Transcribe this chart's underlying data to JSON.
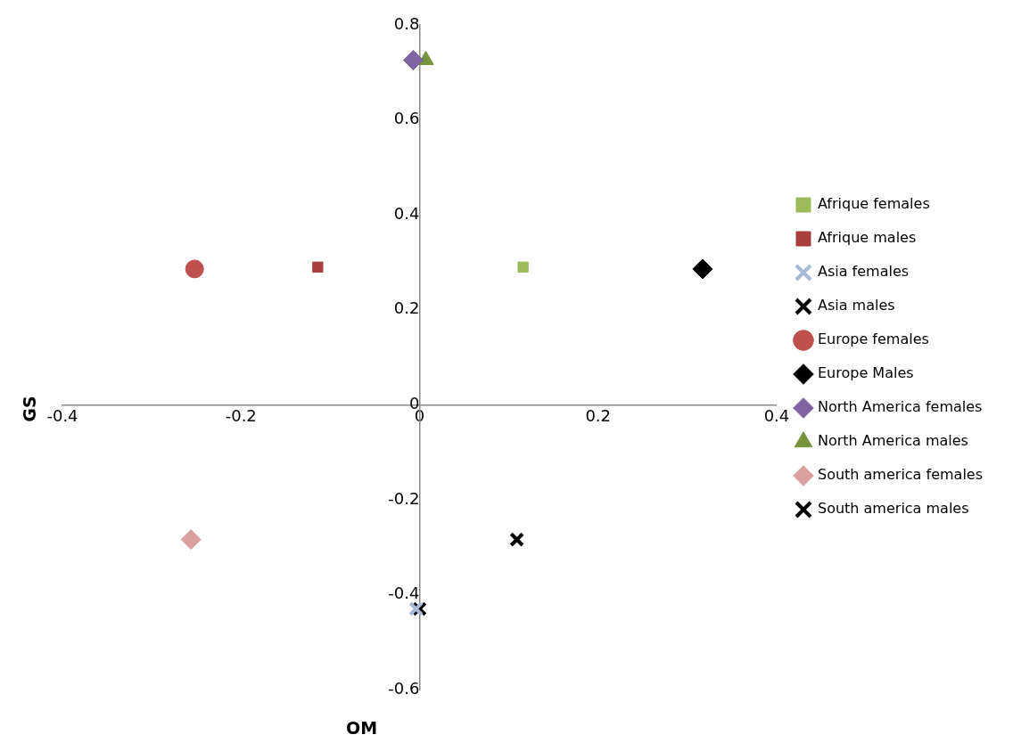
{
  "chart_data": {
    "type": "scatter",
    "xlabel": "OM",
    "ylabel": "GS",
    "xlim": [
      -0.4,
      0.4
    ],
    "xticks": [
      -0.4,
      -0.2,
      0,
      0.2,
      0.4
    ],
    "ylim": [
      -0.6,
      0.8
    ],
    "yticks": [
      -0.6,
      -0.4,
      -0.2,
      0,
      0.2,
      0.4,
      0.6,
      0.8
    ],
    "legend": "right",
    "series": [
      {
        "name": "Afrique females",
        "color": "#9bbb59",
        "marker": "square",
        "x": [
          0.116
        ],
        "values": [
          0.29
        ]
      },
      {
        "name": "Afrique males",
        "color": "#a83f3c",
        "marker": "square",
        "x": [
          -0.114
        ],
        "values": [
          0.29
        ]
      },
      {
        "name": "Asia females",
        "color": "#a7b9d6",
        "marker": "cross",
        "x": [
          -0.004
        ],
        "values": [
          -0.43
        ]
      },
      {
        "name": "Asia males",
        "color": "#000000",
        "marker": "cross",
        "x": [
          0.0
        ],
        "values": [
          -0.43
        ]
      },
      {
        "name": "Europe females",
        "color": "#c0504d",
        "marker": "circle",
        "x": [
          -0.252
        ],
        "values": [
          0.286
        ]
      },
      {
        "name": "Europe Males",
        "color": "#000000",
        "marker": "diamond",
        "x": [
          0.317
        ],
        "values": [
          0.286
        ]
      },
      {
        "name": "North America females",
        "color": "#8064a2",
        "marker": "diamond",
        "x": [
          -0.007
        ],
        "values": [
          0.726
        ]
      },
      {
        "name": "North America males",
        "color": "#77933c",
        "marker": "triangle",
        "x": [
          0.007
        ],
        "values": [
          0.726
        ]
      },
      {
        "name": "South america females",
        "color": "#d9a09d",
        "marker": "diamond",
        "x": [
          -0.256
        ],
        "values": [
          -0.284
        ]
      },
      {
        "name": "South america males",
        "color": "#000000",
        "marker": "cross",
        "x": [
          0.109
        ],
        "values": [
          -0.284
        ]
      }
    ]
  }
}
